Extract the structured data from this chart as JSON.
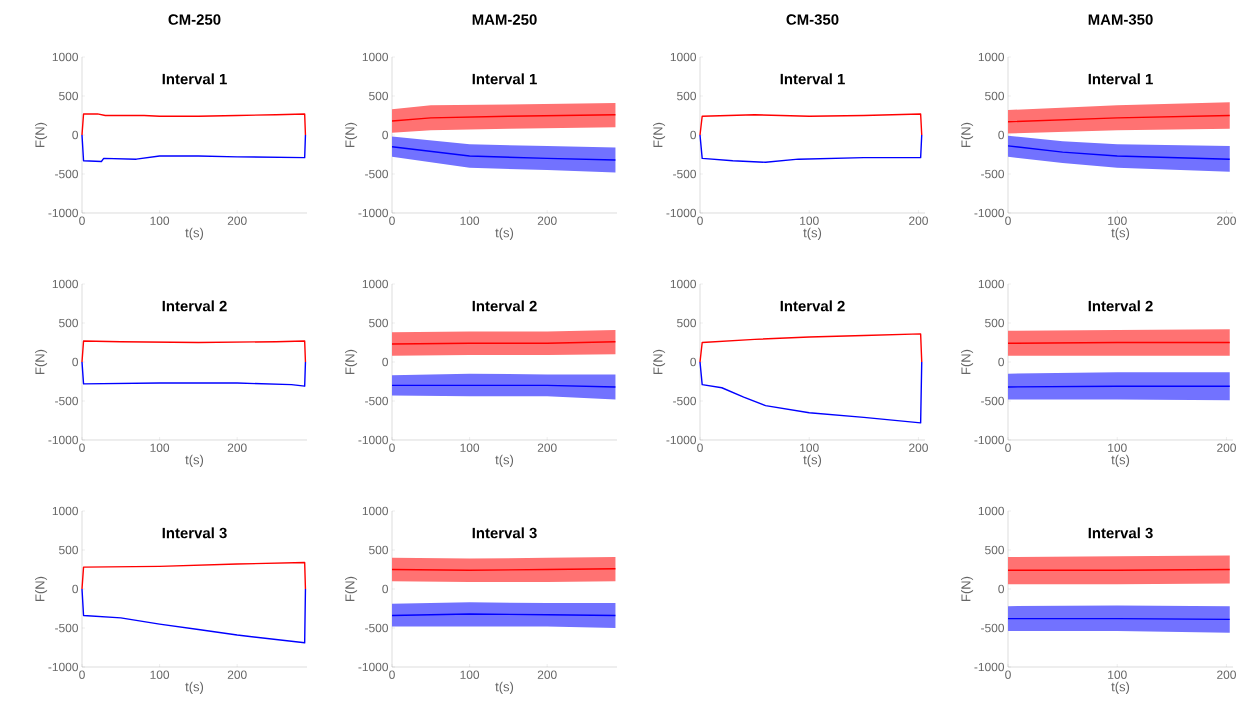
{
  "chart_data": [
    {
      "type": "line",
      "title": "CM-250",
      "subtitle": "Interval 1",
      "xlabel": "t(s)",
      "ylabel": "F(N)",
      "xlim": [
        0,
        290
      ],
      "ylim": [
        -1000,
        1000
      ],
      "xticks": [
        0,
        100,
        200
      ],
      "yticks": [
        -1000,
        -500,
        0,
        500,
        1000
      ],
      "series": [
        {
          "color": "#ff0000",
          "x": [
            0,
            2,
            20,
            30,
            80,
            100,
            150,
            200,
            250,
            287,
            288
          ],
          "values": [
            0,
            270,
            270,
            250,
            250,
            240,
            240,
            250,
            260,
            270,
            0
          ]
        },
        {
          "color": "#0000ff",
          "x": [
            0,
            2,
            25,
            28,
            70,
            100,
            150,
            200,
            287,
            288
          ],
          "values": [
            0,
            -330,
            -340,
            -300,
            -310,
            -270,
            -270,
            -280,
            -290,
            0
          ]
        }
      ]
    },
    {
      "type": "line",
      "title": "MAM-250",
      "subtitle": "Interval 1",
      "xlabel": "t(s)",
      "ylabel": "F(N)",
      "xlim": [
        0,
        290
      ],
      "ylim": [
        -1000,
        1000
      ],
      "xticks": [
        0,
        100,
        200
      ],
      "yticks": [
        -1000,
        -500,
        0,
        500,
        1000
      ],
      "series": [
        {
          "color": "#ff0000",
          "x": [
            0,
            50,
            150,
            288
          ],
          "values": [
            180,
            220,
            240,
            260
          ],
          "lower": [
            30,
            60,
            80,
            100
          ],
          "upper": [
            330,
            380,
            390,
            410
          ]
        },
        {
          "color": "#0000ff",
          "x": [
            0,
            100,
            200,
            288
          ],
          "values": [
            -150,
            -270,
            -300,
            -320
          ],
          "lower": [
            -280,
            -420,
            -450,
            -480
          ],
          "upper": [
            -20,
            -120,
            -140,
            -160
          ]
        }
      ]
    },
    {
      "type": "line",
      "title": "CM-350",
      "subtitle": "Interval 1",
      "xlabel": "t(s)",
      "ylabel": "F(N)",
      "xlim": [
        0,
        206
      ],
      "ylim": [
        -1000,
        1000
      ],
      "xticks": [
        0,
        100,
        200
      ],
      "yticks": [
        -1000,
        -500,
        0,
        500,
        1000
      ],
      "series": [
        {
          "color": "#ff0000",
          "x": [
            0,
            2,
            50,
            100,
            150,
            202,
            203
          ],
          "values": [
            0,
            240,
            260,
            240,
            250,
            270,
            0
          ]
        },
        {
          "color": "#0000ff",
          "x": [
            0,
            2,
            30,
            60,
            90,
            150,
            202,
            203
          ],
          "values": [
            0,
            -300,
            -330,
            -350,
            -310,
            -290,
            -290,
            0
          ]
        }
      ]
    },
    {
      "type": "line",
      "title": "MAM-350",
      "subtitle": "Interval 1",
      "xlabel": "t(s)",
      "ylabel": "F(N)",
      "xlim": [
        0,
        206
      ],
      "ylim": [
        -1000,
        1000
      ],
      "xticks": [
        0,
        100,
        200
      ],
      "yticks": [
        -1000,
        -500,
        0,
        500,
        1000
      ],
      "series": [
        {
          "color": "#ff0000",
          "x": [
            0,
            100,
            203
          ],
          "values": [
            170,
            220,
            250
          ],
          "lower": [
            20,
            60,
            80
          ],
          "upper": [
            320,
            380,
            420
          ]
        },
        {
          "color": "#0000ff",
          "x": [
            0,
            50,
            100,
            203
          ],
          "values": [
            -140,
            -220,
            -270,
            -310
          ],
          "lower": [
            -280,
            -360,
            -420,
            -470
          ],
          "upper": [
            -10,
            -80,
            -120,
            -140
          ]
        }
      ]
    },
    {
      "type": "line",
      "subtitle": "Interval 2",
      "xlabel": "t(s)",
      "ylabel": "F(N)",
      "xlim": [
        0,
        290
      ],
      "ylim": [
        -1000,
        1000
      ],
      "xticks": [
        0,
        100,
        200
      ],
      "yticks": [
        -1000,
        -500,
        0,
        500,
        1000
      ],
      "series": [
        {
          "color": "#ff0000",
          "x": [
            0,
            2,
            50,
            150,
            250,
            287,
            288
          ],
          "values": [
            0,
            270,
            260,
            250,
            260,
            270,
            0
          ]
        },
        {
          "color": "#0000ff",
          "x": [
            0,
            2,
            100,
            200,
            270,
            287,
            288
          ],
          "values": [
            0,
            -280,
            -270,
            -270,
            -290,
            -310,
            0
          ]
        }
      ]
    },
    {
      "type": "line",
      "subtitle": "Interval 2",
      "xlabel": "t(s)",
      "ylabel": "F(N)",
      "xlim": [
        0,
        290
      ],
      "ylim": [
        -1000,
        1000
      ],
      "xticks": [
        0,
        100,
        200
      ],
      "yticks": [
        -1000,
        -500,
        0,
        500,
        1000
      ],
      "series": [
        {
          "color": "#ff0000",
          "x": [
            0,
            100,
            200,
            288
          ],
          "values": [
            230,
            240,
            240,
            260
          ],
          "lower": [
            80,
            90,
            90,
            100
          ],
          "upper": [
            380,
            390,
            390,
            410
          ]
        },
        {
          "color": "#0000ff",
          "x": [
            0,
            100,
            200,
            288
          ],
          "values": [
            -300,
            -300,
            -300,
            -320
          ],
          "lower": [
            -430,
            -440,
            -440,
            -480
          ],
          "upper": [
            -170,
            -150,
            -160,
            -160
          ]
        }
      ]
    },
    {
      "type": "line",
      "subtitle": "Interval 2",
      "xlabel": "t(s)",
      "ylabel": "F(N)",
      "xlim": [
        0,
        206
      ],
      "ylim": [
        -1000,
        1000
      ],
      "xticks": [
        0,
        100,
        200
      ],
      "yticks": [
        -1000,
        -500,
        0,
        500,
        1000
      ],
      "series": [
        {
          "color": "#ff0000",
          "x": [
            0,
            2,
            50,
            100,
            150,
            202,
            203
          ],
          "values": [
            0,
            250,
            290,
            320,
            340,
            360,
            0
          ]
        },
        {
          "color": "#0000ff",
          "x": [
            0,
            2,
            20,
            40,
            60,
            100,
            150,
            202,
            203
          ],
          "values": [
            0,
            -290,
            -330,
            -450,
            -560,
            -650,
            -710,
            -780,
            0
          ]
        }
      ]
    },
    {
      "type": "line",
      "subtitle": "Interval 2",
      "xlabel": "t(s)",
      "ylabel": "F(N)",
      "xlim": [
        0,
        206
      ],
      "ylim": [
        -1000,
        1000
      ],
      "xticks": [
        0,
        100,
        200
      ],
      "yticks": [
        -1000,
        -500,
        0,
        500,
        1000
      ],
      "series": [
        {
          "color": "#ff0000",
          "x": [
            0,
            100,
            203
          ],
          "values": [
            240,
            250,
            250
          ],
          "lower": [
            80,
            80,
            80
          ],
          "upper": [
            400,
            410,
            420
          ]
        },
        {
          "color": "#0000ff",
          "x": [
            0,
            100,
            203
          ],
          "values": [
            -320,
            -310,
            -310
          ],
          "lower": [
            -480,
            -480,
            -490
          ],
          "upper": [
            -150,
            -130,
            -130
          ]
        }
      ]
    },
    {
      "type": "line",
      "subtitle": "Interval 3",
      "xlabel": "t(s)",
      "ylabel": "F(N)",
      "xlim": [
        0,
        290
      ],
      "ylim": [
        -1000,
        1000
      ],
      "xticks": [
        0,
        100,
        200
      ],
      "yticks": [
        -1000,
        -500,
        0,
        500,
        1000
      ],
      "series": [
        {
          "color": "#ff0000",
          "x": [
            0,
            2,
            100,
            200,
            287,
            288
          ],
          "values": [
            0,
            280,
            290,
            320,
            340,
            0
          ]
        },
        {
          "color": "#0000ff",
          "x": [
            0,
            2,
            50,
            100,
            150,
            200,
            287,
            288
          ],
          "values": [
            0,
            -340,
            -370,
            -450,
            -520,
            -590,
            -690,
            0
          ]
        }
      ]
    },
    {
      "type": "line",
      "subtitle": "Interval 3",
      "xlabel": "t(s)",
      "ylabel": "F(N)",
      "xlim": [
        0,
        290
      ],
      "ylim": [
        -1000,
        1000
      ],
      "xticks": [
        0,
        100,
        200
      ],
      "yticks": [
        -1000,
        -500,
        0,
        500,
        1000
      ],
      "series": [
        {
          "color": "#ff0000",
          "x": [
            0,
            100,
            200,
            288
          ],
          "values": [
            250,
            240,
            250,
            260
          ],
          "lower": [
            100,
            90,
            90,
            100
          ],
          "upper": [
            400,
            390,
            400,
            410
          ]
        },
        {
          "color": "#0000ff",
          "x": [
            0,
            100,
            200,
            288
          ],
          "values": [
            -340,
            -320,
            -330,
            -340
          ],
          "lower": [
            -480,
            -480,
            -480,
            -500
          ],
          "upper": [
            -190,
            -170,
            -180,
            -180
          ]
        }
      ]
    },
    {
      "type": "line",
      "subtitle": "Interval 3",
      "xlabel": "t(s)",
      "ylabel": "F(N)",
      "xlim": [
        0,
        206
      ],
      "ylim": [
        -1000,
        1000
      ],
      "xticks": [
        0,
        100,
        200
      ],
      "yticks": [
        -1000,
        -500,
        0,
        500,
        1000
      ],
      "series": [
        {
          "color": "#ff0000",
          "x": [
            0,
            100,
            203
          ],
          "values": [
            240,
            240,
            250
          ],
          "lower": [
            60,
            60,
            70
          ],
          "upper": [
            410,
            420,
            430
          ]
        },
        {
          "color": "#0000ff",
          "x": [
            0,
            100,
            203
          ],
          "values": [
            -380,
            -380,
            -390
          ],
          "lower": [
            -540,
            -540,
            -560
          ],
          "upper": [
            -220,
            -210,
            -220
          ]
        }
      ]
    }
  ]
}
